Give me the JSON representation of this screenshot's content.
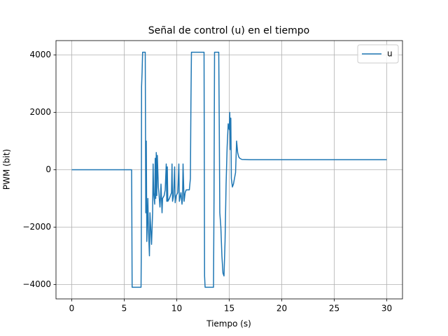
{
  "chart_data": {
    "type": "line",
    "title": "Señal de control (u) en el tiempo",
    "x_label": "Tiempo (s)",
    "y_label": "PWM (bit)",
    "x": [
      0,
      5.7,
      5.72,
      5.75,
      6.6,
      6.62,
      6.65,
      6.7,
      6.75,
      7.0,
      7.05,
      7.1,
      7.15,
      7.25,
      7.3,
      7.4,
      7.45,
      7.6,
      7.7,
      7.75,
      7.8,
      7.9,
      7.95,
      8.0,
      8.05,
      8.1,
      8.15,
      8.25,
      8.3,
      8.4,
      8.45,
      8.5,
      8.6,
      8.65,
      8.8,
      8.9,
      9.0,
      9.05,
      9.1,
      9.15,
      9.3,
      9.4,
      9.5,
      9.55,
      9.6,
      9.7,
      9.8,
      9.85,
      9.95,
      10.1,
      10.2,
      10.25,
      10.4,
      10.5,
      10.55,
      10.6,
      10.7,
      10.8,
      10.9,
      11.0,
      11.2,
      11.3,
      11.35,
      11.4,
      12.6,
      12.65,
      12.7,
      13.5,
      13.55,
      13.6,
      14.0,
      14.05,
      14.1,
      14.2,
      14.3,
      14.4,
      14.5,
      14.6,
      14.65,
      14.7,
      14.8,
      14.9,
      15.0,
      15.05,
      15.1,
      15.15,
      15.2,
      15.3,
      15.4,
      15.5,
      15.6,
      15.7,
      15.8,
      15.9,
      16.0,
      16.2,
      17.0,
      30
    ],
    "series": [
      {
        "name": "u",
        "color": "#1f77b4",
        "values": [
          0,
          0,
          -1300,
          -4095,
          -4095,
          -3000,
          2900,
          3400,
          4095,
          4095,
          -1500,
          1000,
          -2500,
          -1000,
          -2000,
          -3000,
          -1500,
          -2600,
          -1500,
          200,
          -800,
          -1200,
          400,
          -1000,
          600,
          -900,
          500,
          -600,
          -800,
          -1300,
          -1000,
          -500,
          -1500,
          -1000,
          -900,
          -700,
          200,
          -1100,
          100,
          -1100,
          -1000,
          -900,
          -800,
          200,
          -1100,
          -900,
          100,
          -1150,
          -900,
          -800,
          200,
          -1100,
          -800,
          -1200,
          -1000,
          200,
          -1100,
          -800,
          -700,
          -700,
          -700,
          -300,
          2300,
          4095,
          4095,
          -3700,
          -4095,
          -4095,
          -1000,
          4095,
          4095,
          1500,
          -1500,
          -2000,
          -3000,
          -3600,
          -3700,
          -2500,
          -1500,
          -500,
          800,
          1600,
          1400,
          2000,
          700,
          1800,
          -300,
          -600,
          -500,
          -300,
          -100,
          1000,
          600,
          450,
          400,
          360,
          350,
          350
        ]
      }
    ],
    "xlim": [
      -1.5,
      31.5
    ],
    "ylim": [
      -4500,
      4500
    ],
    "xticks": [
      0,
      5,
      10,
      15,
      20,
      25,
      30
    ],
    "yticks": [
      {
        "value": -4000,
        "label": "−4000"
      },
      {
        "value": -2000,
        "label": "−2000"
      },
      0,
      2000,
      4000
    ],
    "grid": true,
    "legend": "upper right"
  }
}
